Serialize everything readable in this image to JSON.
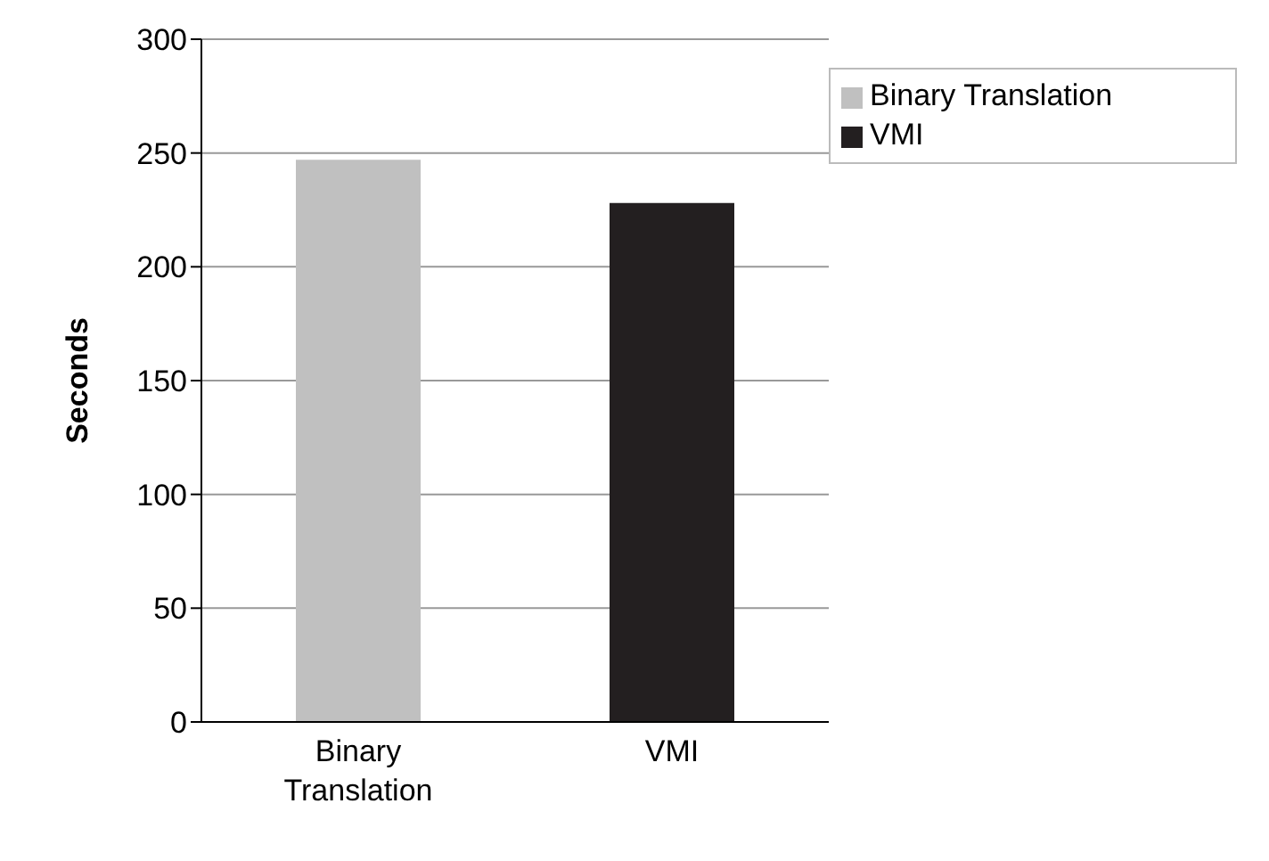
{
  "chart_data": {
    "type": "bar",
    "ylabel": "Seconds",
    "categories": [
      "Binary Translation",
      "VMI"
    ],
    "series": [
      {
        "name": "Binary Translation",
        "color": "#c0c0c0",
        "values": [
          247,
          null
        ]
      },
      {
        "name": "VMI",
        "color": "#231f20",
        "values": [
          null,
          228
        ]
      }
    ],
    "ylim": [
      0,
      300
    ],
    "yticks": [
      0,
      50,
      100,
      150,
      200,
      250,
      300
    ],
    "grid": "y",
    "legend": "top right"
  }
}
